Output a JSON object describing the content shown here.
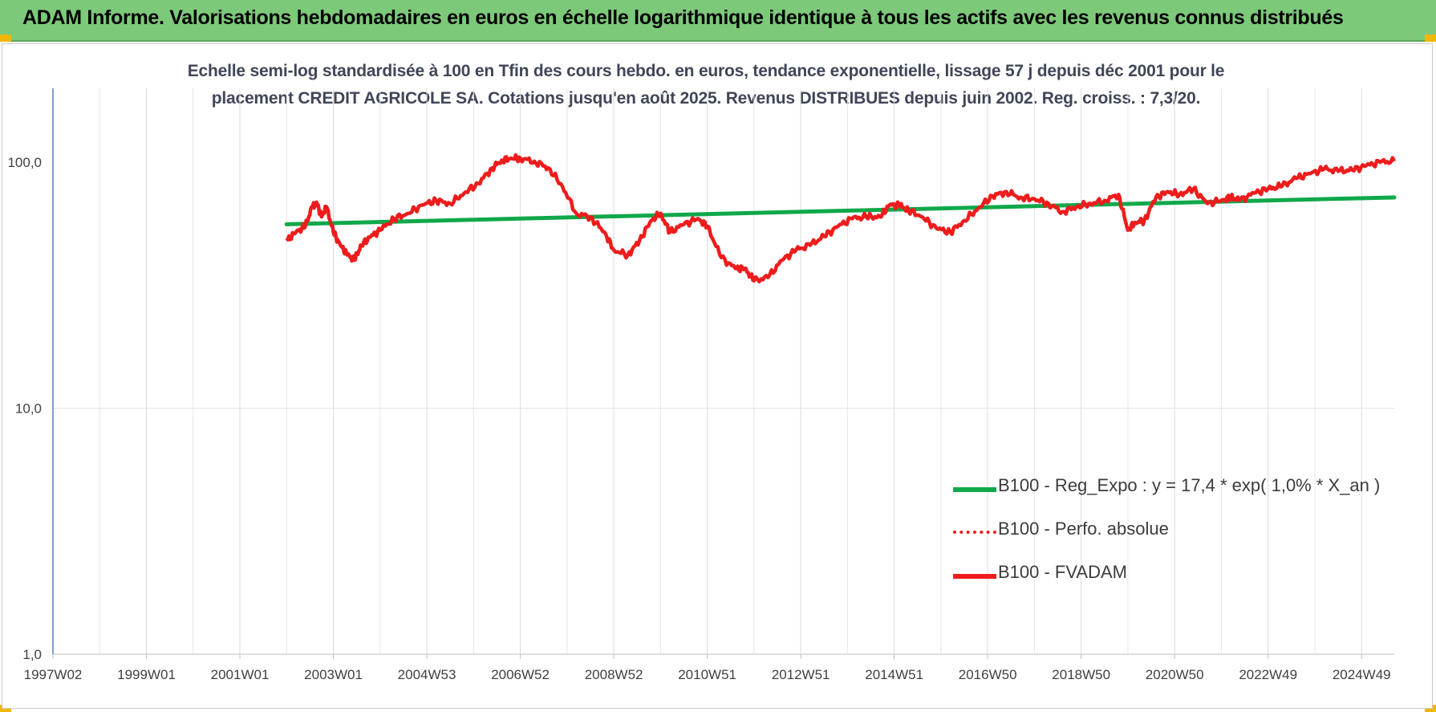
{
  "banner": {
    "title": "ADAM Informe. Valorisations hebdomadaires en euros en échelle logarithmique identique à tous les actifs avec les revenus connus distribués"
  },
  "colors": {
    "banner_bg": "#7dc97a",
    "regression": "#10a84a",
    "fvadam": "#ee1c1c",
    "perfo": "#ee1c1c",
    "corner_marks": "#f2b705"
  },
  "chart_data": {
    "type": "line",
    "title_lines": [
      "Echelle semi-log standardisée à 100 en Tfin des cours hebdo. en euros, tendance exponentielle, lissage 57 j depuis déc 2001 pour le",
      "placement CREDIT AGRICOLE SA. Cotations jusqu'en août 2025. Revenus DISTRIBUES depuis juin 2002. Reg. croiss. : 7,3/20."
    ],
    "y_scale": "log",
    "ylim": [
      1,
      200
    ],
    "y_ticks": [
      1,
      10,
      100
    ],
    "y_tick_labels": [
      "1,0",
      "10,0",
      "100,0"
    ],
    "xlim": [
      1997.0,
      2025.7
    ],
    "x_ticks": [
      1997.0,
      1999.0,
      2001.0,
      2003.0,
      2005.0,
      2007.0,
      2009.0,
      2011.0,
      2013.0,
      2015.0,
      2017.0,
      2019.0,
      2021.0,
      2023.0,
      2025.0
    ],
    "x_tick_labels": [
      "1997W02",
      "1999W01",
      "2001W01",
      "2003W01",
      "2004W53",
      "2006W52",
      "2008W52",
      "2010W51",
      "2012W51",
      "2014W51",
      "2016W50",
      "2018W50",
      "2020W50",
      "2022W49",
      "2024W49"
    ],
    "grid": "vertical",
    "legend_position": "bottom-right",
    "series": [
      {
        "name": "B100 - Reg_Expo : y = 17,4 * exp( 1,0% *  X_an )",
        "style": "solid-green",
        "x": [
          2002.0,
          2025.7
        ],
        "y": [
          56,
          72
        ]
      },
      {
        "name": "B100 - Perfo. absolue",
        "style": "dotted-red",
        "x": [],
        "y": []
      },
      {
        "name": "B100 - FVADAM",
        "style": "solid-red",
        "x": [
          2002.0,
          2002.2,
          2002.4,
          2002.55,
          2002.65,
          2002.75,
          2002.85,
          2003.0,
          2003.15,
          2003.3,
          2003.45,
          2003.6,
          2003.8,
          2004.0,
          2004.3,
          2004.6,
          2004.9,
          2005.2,
          2005.5,
          2005.8,
          2006.1,
          2006.4,
          2006.6,
          2006.8,
          2007.0,
          2007.3,
          2007.6,
          2007.9,
          2008.2,
          2008.5,
          2008.8,
          2009.0,
          2009.3,
          2009.55,
          2009.8,
          2010.0,
          2010.2,
          2010.5,
          2010.8,
          2011.0,
          2011.3,
          2011.6,
          2011.8,
          2012.0,
          2012.3,
          2012.6,
          2012.9,
          2013.2,
          2013.5,
          2013.8,
          2014.1,
          2014.4,
          2014.7,
          2014.9,
          2015.1,
          2015.3,
          2015.6,
          2015.9,
          2016.2,
          2016.5,
          2016.8,
          2017.1,
          2017.4,
          2017.7,
          2018.0,
          2018.3,
          2018.6,
          2018.9,
          2019.2,
          2019.5,
          2019.8,
          2020.0,
          2020.15,
          2020.35,
          2020.6,
          2020.85,
          2021.1,
          2021.4,
          2021.7,
          2022.0,
          2022.2,
          2022.4,
          2022.7,
          2023.0,
          2023.3,
          2023.6,
          2023.9,
          2024.2,
          2024.5,
          2024.8,
          2025.1,
          2025.4,
          2025.7
        ],
        "y": [
          48,
          52,
          55,
          66,
          68,
          60,
          66,
          52,
          46,
          42,
          40,
          46,
          50,
          53,
          59,
          62,
          67,
          70,
          68,
          75,
          82,
          95,
          102,
          104,
          104,
          101,
          95,
          80,
          62,
          60,
          52,
          44,
          42,
          48,
          58,
          62,
          52,
          56,
          59,
          55,
          41,
          37,
          37,
          33,
          34,
          40,
          44,
          46,
          50,
          55,
          59,
          60,
          60,
          67,
          67,
          64,
          60,
          54,
          52,
          58,
          65,
          73,
          76,
          72,
          71,
          68,
          63,
          66,
          68,
          70,
          74,
          53,
          57,
          58,
          72,
          76,
          74,
          78,
          68,
          70,
          72,
          70,
          75,
          78,
          80,
          86,
          90,
          94,
          92,
          93,
          97,
          100,
          101
        ]
      }
    ]
  }
}
